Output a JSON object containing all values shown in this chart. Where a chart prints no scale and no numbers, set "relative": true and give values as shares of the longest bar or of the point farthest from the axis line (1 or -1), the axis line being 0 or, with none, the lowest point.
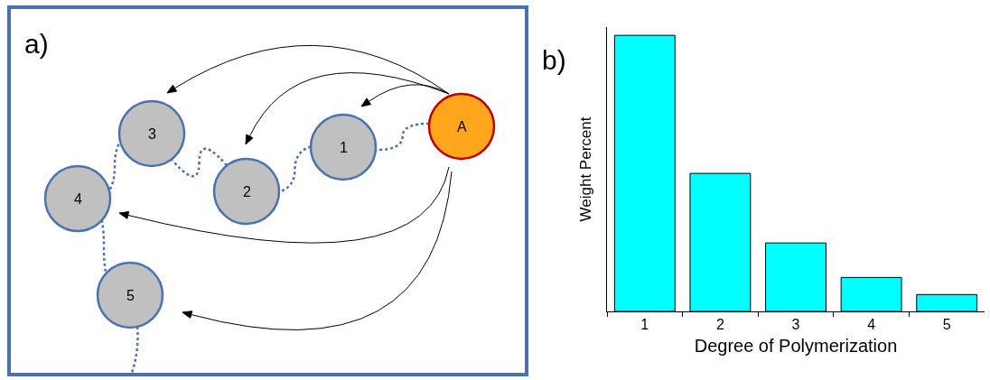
{
  "chart_data": [
    {
      "type": "other",
      "title": "a)",
      "annotations": [
        "A",
        "1",
        "2",
        "3",
        "4",
        "5"
      ]
    },
    {
      "type": "bar",
      "title": "b)",
      "xlabel": "Degree of Polymerization",
      "ylabel": "Weight Percent",
      "categories": [
        "1",
        "2",
        "3",
        "4",
        "5"
      ],
      "values": [
        1,
        0.5,
        0.248,
        0.123,
        0.061
      ],
      "color": "#00ffff",
      "relative": true
    }
  ]
}
